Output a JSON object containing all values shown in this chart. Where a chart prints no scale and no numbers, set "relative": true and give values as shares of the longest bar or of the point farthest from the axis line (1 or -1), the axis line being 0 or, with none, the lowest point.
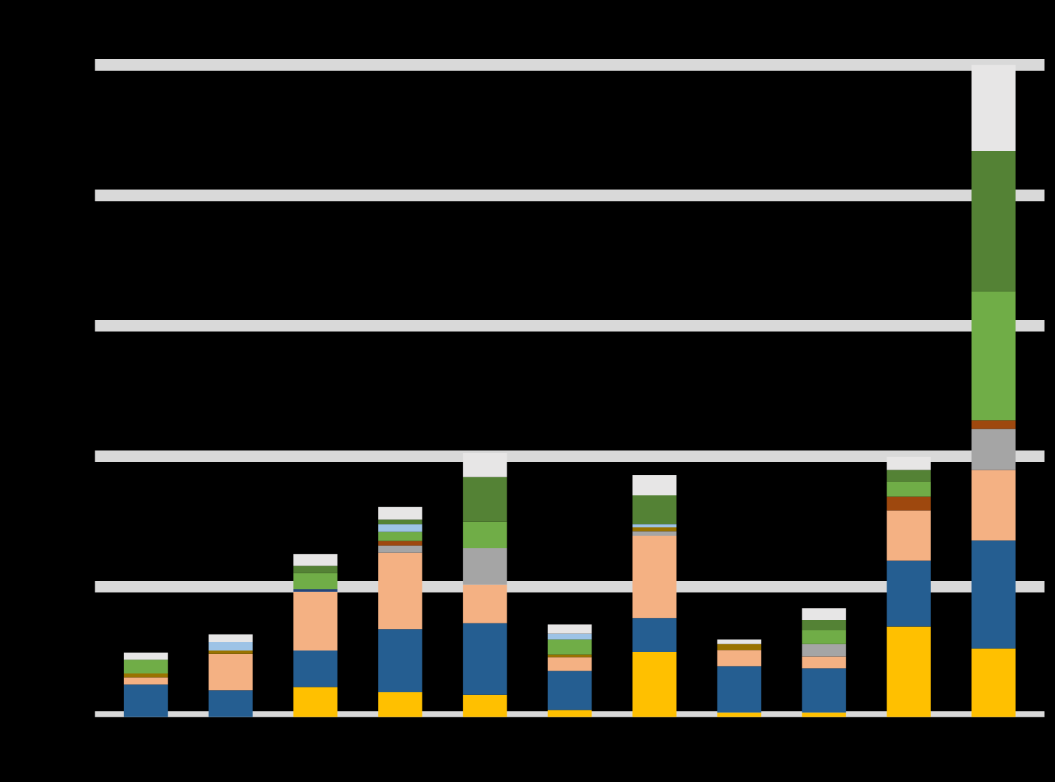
{
  "chart_data": {
    "type": "bar",
    "stacked": true,
    "relative": true,
    "grid": "y",
    "categories": [
      null,
      null,
      null,
      null,
      null,
      null,
      null,
      null,
      null,
      null,
      null
    ],
    "series": [
      {
        "color": "#ffc000",
        "values": [
          0,
          0,
          0.046,
          0.038,
          0.034,
          0.011,
          0.1,
          0.007,
          0.007,
          0.139,
          0.105
        ]
      },
      {
        "color": "#255e91",
        "values": [
          0.05,
          0.041,
          0.056,
          0.097,
          0.11,
          0.06,
          0.052,
          0.071,
          0.068,
          0.101,
          0.166
        ]
      },
      {
        "color": "#f4b183",
        "values": [
          0.011,
          0.056,
          0.09,
          0.117,
          0.059,
          0.021,
          0.126,
          0.025,
          0.018,
          0.077,
          0.108
        ]
      },
      {
        "color": "#a5a5a5",
        "values": [
          0,
          0,
          0,
          0.011,
          0.056,
          0,
          0.007,
          0,
          0.019,
          0,
          0.063
        ]
      },
      {
        "color": "#264478",
        "values": [
          0,
          0,
          0.004,
          0,
          0,
          0,
          0,
          0,
          0,
          0,
          0
        ]
      },
      {
        "color": "#9e480e",
        "values": [
          0,
          0,
          0,
          0.007,
          0,
          0,
          0,
          0,
          0,
          0.021,
          0.013
        ]
      },
      {
        "color": "#997300",
        "values": [
          0.006,
          0.005,
          0,
          0,
          0,
          0.004,
          0.006,
          0.009,
          0,
          0,
          0
        ]
      },
      {
        "color": "#70ad47",
        "values": [
          0.021,
          0,
          0.025,
          0.014,
          0.041,
          0.023,
          0,
          0,
          0.021,
          0.023,
          0.198
        ]
      },
      {
        "color": "#9dc3e6",
        "values": [
          0,
          0.013,
          0,
          0.012,
          0,
          0.009,
          0.005,
          0,
          0,
          0,
          0
        ]
      },
      {
        "color": "#548235",
        "values": [
          0,
          0,
          0.011,
          0.007,
          0.068,
          0,
          0.044,
          0,
          0.016,
          0.018,
          0.215
        ]
      },
      {
        "color": "#e7e6e6",
        "values": [
          0.011,
          0.012,
          0.018,
          0.019,
          0.037,
          0.014,
          0.031,
          0.007,
          0.018,
          0.02,
          0.132
        ]
      }
    ]
  }
}
